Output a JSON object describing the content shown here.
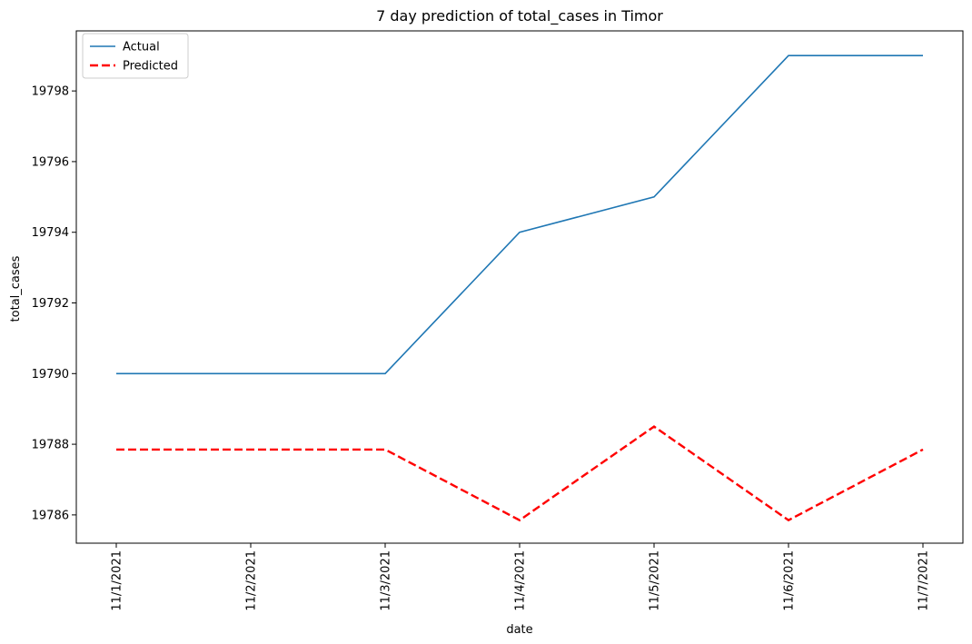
{
  "chart_data": {
    "type": "line",
    "title": "7 day prediction of total_cases in Timor",
    "xlabel": "date",
    "ylabel": "total_cases",
    "categories": [
      "11/1/2021",
      "11/2/2021",
      "11/3/2021",
      "11/4/2021",
      "11/5/2021",
      "11/6/2021",
      "11/7/2021"
    ],
    "series": [
      {
        "name": "Actual",
        "values": [
          19790,
          19790,
          19790,
          19794,
          19795,
          19799,
          19799
        ],
        "color": "#1f77b4",
        "style": "solid"
      },
      {
        "name": "Predicted",
        "values": [
          19787.85,
          null,
          19787.85,
          19785.85,
          19788.5,
          19785.85,
          19787.85
        ],
        "color": "#ff0000",
        "style": "dashed"
      }
    ],
    "ylim": [
      19785.2,
      19799.7
    ],
    "yticks": [
      19786,
      19788,
      19790,
      19792,
      19794,
      19796,
      19798
    ],
    "grid": false,
    "legend": "top-left"
  }
}
